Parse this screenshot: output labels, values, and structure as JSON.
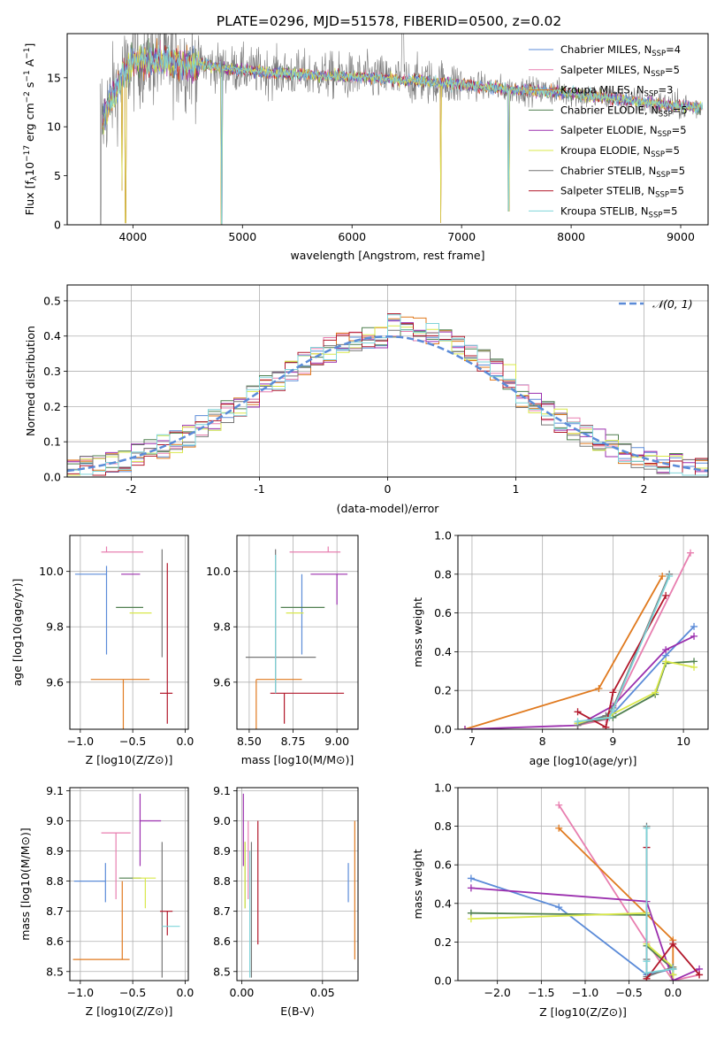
{
  "figure_title": "PLATE=0296, MJD=51578, FIBERID=0500, z=0.02",
  "colors": {
    "chabrier_miles": "#5b8bd8",
    "salpeter_miles": "#e87fb0",
    "kroupa_miles": "#e07a1f",
    "chabrier_elodie": "#4f7f4f",
    "salpeter_elodie": "#9b2fae",
    "kroupa_elodie": "#d9e84a",
    "chabrier_stelib": "#777777",
    "salpeter_stelib": "#b2182b",
    "kroupa_stelib": "#7fd4d9",
    "gaussian": "#5b8bd8"
  },
  "chart_data": [
    {
      "id": "spectrum",
      "type": "line",
      "title": "PLATE=0296, MJD=51578, FIBERID=0500, z=0.02",
      "xlabel": "wavelength [Angstrom, rest frame]",
      "ylabel": "Flux [f_λ 10^-17 erg cm^-2 s^-1 A^-1]",
      "xlim": [
        3400,
        9250
      ],
      "ylim": [
        0,
        19.5
      ],
      "xticks": [
        4000,
        5000,
        6000,
        7000,
        8000,
        9000
      ],
      "yticks": [
        0,
        5,
        10,
        15
      ],
      "grid": false,
      "legend_position": "top-right",
      "series": [
        {
          "name": "Chabrier MILES, N_SSP=4",
          "key": "chabrier_miles"
        },
        {
          "name": "Salpeter MILES, N_SSP=5",
          "key": "salpeter_miles"
        },
        {
          "name": "Kroupa MILES, N_SSP=3",
          "key": "kroupa_miles"
        },
        {
          "name": "Chabrier ELODIE, N_SSP=5",
          "key": "chabrier_elodie"
        },
        {
          "name": "Salpeter ELODIE, N_SSP=5",
          "key": "salpeter_elodie"
        },
        {
          "name": "Kroupa ELODIE, N_SSP=5",
          "key": "kroupa_elodie"
        },
        {
          "name": "Chabrier STELIB, N_SSP=5",
          "key": "chabrier_stelib"
        },
        {
          "name": "Salpeter STELIB, N_SSP=5",
          "key": "salpeter_stelib"
        },
        {
          "name": "Kroupa STELIB, N_SSP=5",
          "key": "kroupa_stelib"
        }
      ],
      "continuum": {
        "x": [
          3720,
          3800,
          3900,
          4000,
          4200,
          4400,
          4600,
          4800,
          5000,
          5200,
          5400,
          5600,
          5800,
          6000,
          6200,
          6400,
          6600,
          6800,
          7000,
          7200,
          7400,
          7600,
          7800,
          8000,
          8200,
          8400,
          8600,
          8800,
          9000,
          9200
        ],
        "y": [
          10.5,
          13.0,
          15.0,
          16.6,
          16.8,
          16.6,
          16.4,
          16.0,
          15.8,
          15.6,
          15.4,
          15.3,
          15.2,
          15.1,
          15.0,
          14.8,
          14.7,
          14.5,
          14.3,
          14.1,
          13.8,
          13.7,
          13.6,
          13.4,
          13.1,
          12.9,
          12.6,
          12.3,
          12.1,
          12.0
        ]
      },
      "model_dips": [
        {
          "x": 3900,
          "y": 3.5
        },
        {
          "x": 3935,
          "y": 0.2
        },
        {
          "x": 4810,
          "y": 0.1
        },
        {
          "x": 6810,
          "y": 0.2
        },
        {
          "x": 7430,
          "y": 1.4
        }
      ]
    },
    {
      "id": "residuals",
      "type": "bar",
      "xlabel": "(data-model)/error",
      "ylabel": "Normed distribution",
      "xlim": [
        -2.5,
        2.5
      ],
      "ylim": [
        0,
        0.545
      ],
      "xticks": [
        -2,
        -1,
        0,
        1,
        2
      ],
      "yticks": [
        0.0,
        0.1,
        0.2,
        0.3,
        0.4,
        0.5
      ],
      "grid": true,
      "legend_position": "top-right",
      "legend": [
        "𝒩(0, 1)"
      ],
      "bin_width": 0.1,
      "notes": "step histograms of (data-model)/error for each of the 9 fits, compared to a standard normal curve"
    },
    {
      "id": "age_vs_Z",
      "type": "scatter",
      "xlabel": "Z [log10(Z/Z⊙)]",
      "ylabel": "age [log10(age/yr)]",
      "xlim": [
        -1.1,
        0.03
      ],
      "ylim": [
        9.43,
        10.13
      ],
      "xticks": [
        -1.0,
        -0.5,
        0.0
      ],
      "xtick_labels": [
        "−1.0",
        "−0.5",
        "0.0"
      ],
      "yticks": [
        9.6,
        9.8,
        10.0
      ],
      "grid": true,
      "points": [
        {
          "key": "chabrier_miles",
          "x": -0.75,
          "xerr": [
            0.3,
            0.0
          ],
          "y": 9.99,
          "yerr": [
            0.29,
            0.03
          ]
        },
        {
          "key": "salpeter_miles",
          "x": -0.75,
          "xerr": [
            0.05,
            0.35
          ],
          "y": 10.07,
          "yerr": [
            0.0,
            0.02
          ]
        },
        {
          "key": "kroupa_miles",
          "x": -0.59,
          "xerr": [
            0.31,
            0.25
          ],
          "y": 9.61,
          "yerr": [
            0.36,
            0.0
          ]
        },
        {
          "key": "chabrier_elodie",
          "x": -0.4,
          "xerr": [
            0.26,
            0.0
          ],
          "y": 9.87,
          "yerr": [
            0.0,
            0.0
          ]
        },
        {
          "key": "salpeter_elodie",
          "x": -0.43,
          "xerr": [
            0.18,
            0.0
          ],
          "y": 9.99,
          "yerr": [
            0.0,
            0.0
          ]
        },
        {
          "key": "kroupa_elodie",
          "x": -0.38,
          "xerr": [
            0.15,
            0.06
          ],
          "y": 9.85,
          "yerr": [
            0.0,
            0.0
          ]
        },
        {
          "key": "chabrier_stelib",
          "x": -0.22,
          "xerr": [
            0.0,
            0.0
          ],
          "y": 9.69,
          "yerr": [
            0.0,
            0.39
          ]
        },
        {
          "key": "salpeter_stelib",
          "x": -0.17,
          "xerr": [
            0.07,
            0.05
          ],
          "y": 9.56,
          "yerr": [
            0.11,
            0.47
          ]
        },
        {
          "key": "kroupa_stelib",
          "x": -0.22,
          "xerr": [
            0.0,
            0.0
          ],
          "y": 9.69,
          "yerr": [
            0.0,
            0.0
          ]
        }
      ]
    },
    {
      "id": "age_vs_mass",
      "type": "scatter",
      "xlabel": "mass [log10(M/M⊙)]",
      "ylabel": "",
      "xlim": [
        8.43,
        9.12
      ],
      "ylim": [
        9.43,
        10.13
      ],
      "xticks": [
        8.5,
        8.75,
        9.0
      ],
      "xtick_labels": [
        "8.50",
        "8.75",
        "9.00"
      ],
      "yticks": [
        9.6,
        9.8,
        10.0
      ],
      "grid": true,
      "points": [
        {
          "key": "chabrier_miles",
          "x": 8.8,
          "xerr": [
            0.0,
            0.0
          ],
          "y": 9.99,
          "yerr": [
            0.29,
            0.0
          ]
        },
        {
          "key": "salpeter_miles",
          "x": 8.95,
          "xerr": [
            0.22,
            0.07
          ],
          "y": 10.07,
          "yerr": [
            0.0,
            0.02
          ]
        },
        {
          "key": "kroupa_miles",
          "x": 8.54,
          "xerr": [
            0.0,
            0.26
          ],
          "y": 9.61,
          "yerr": [
            0.36,
            0.0
          ]
        },
        {
          "key": "chabrier_elodie",
          "x": 8.81,
          "xerr": [
            0.13,
            0.12
          ],
          "y": 9.87,
          "yerr": [
            0.0,
            0.0
          ]
        },
        {
          "key": "salpeter_elodie",
          "x": 9.0,
          "xerr": [
            0.15,
            0.06
          ],
          "y": 9.99,
          "yerr": [
            0.11,
            0.0
          ]
        },
        {
          "key": "kroupa_elodie",
          "x": 8.81,
          "xerr": [
            0.1,
            0.0
          ],
          "y": 9.85,
          "yerr": [
            0.0,
            0.0
          ]
        },
        {
          "key": "chabrier_stelib",
          "x": 8.65,
          "xerr": [
            0.17,
            0.23
          ],
          "y": 9.69,
          "yerr": [
            0.13,
            0.39
          ]
        },
        {
          "key": "salpeter_stelib",
          "x": 8.7,
          "xerr": [
            0.08,
            0.34
          ],
          "y": 9.56,
          "yerr": [
            0.11,
            0.0
          ]
        },
        {
          "key": "kroupa_stelib",
          "x": 8.65,
          "xerr": [
            0.0,
            0.0
          ],
          "y": 9.69,
          "yerr": [
            0.13,
            0.37
          ]
        }
      ]
    },
    {
      "id": "mass_weight_vs_age",
      "type": "line",
      "xlabel": "age [log10(age/yr)]",
      "ylabel": "mass weight",
      "xlim": [
        6.8,
        10.35
      ],
      "ylim": [
        0.0,
        1.0
      ],
      "xticks": [
        7,
        8,
        9,
        10
      ],
      "yticks": [
        0.0,
        0.2,
        0.4,
        0.6,
        0.8,
        1.0
      ],
      "grid": true,
      "series": [
        {
          "key": "chabrier_miles",
          "x": [
            8.5,
            9.0,
            9.75,
            10.15
          ],
          "y": [
            0.03,
            0.08,
            0.38,
            0.53
          ]
        },
        {
          "key": "salpeter_miles",
          "x": [
            8.5,
            8.9,
            9.0,
            10.1
          ],
          "y": [
            0.02,
            0.05,
            0.1,
            0.91
          ]
        },
        {
          "key": "kroupa_miles",
          "x": [
            6.9,
            8.8,
            9.7
          ],
          "y": [
            0.0,
            0.21,
            0.79
          ]
        },
        {
          "key": "chabrier_elodie",
          "x": [
            8.5,
            9.0,
            9.6,
            9.75,
            10.15
          ],
          "y": [
            0.03,
            0.06,
            0.18,
            0.34,
            0.35
          ]
        },
        {
          "key": "salpeter_elodie",
          "x": [
            6.9,
            8.5,
            9.0,
            9.75,
            10.15
          ],
          "y": [
            0.0,
            0.02,
            0.12,
            0.41,
            0.48
          ]
        },
        {
          "key": "kroupa_elodie",
          "x": [
            8.5,
            8.95,
            9.6,
            9.75,
            10.15
          ],
          "y": [
            0.03,
            0.07,
            0.19,
            0.35,
            0.32
          ]
        },
        {
          "key": "chabrier_stelib",
          "x": [
            8.5,
            8.9,
            9.0,
            9.8
          ],
          "y": [
            0.02,
            0.07,
            0.11,
            0.8
          ]
        },
        {
          "key": "salpeter_stelib",
          "x": [
            8.5,
            8.9,
            9.0,
            9.75
          ],
          "y": [
            0.09,
            0.01,
            0.19,
            0.69
          ]
        },
        {
          "key": "kroupa_stelib",
          "x": [
            8.5,
            8.95,
            9.0,
            9.8
          ],
          "y": [
            0.04,
            0.06,
            0.1,
            0.79
          ]
        }
      ]
    },
    {
      "id": "mass_vs_Z",
      "type": "scatter",
      "xlabel": "Z [log10(Z/Z⊙)]",
      "ylabel": "mass [log10(M/M⊙)]",
      "xlim": [
        -1.1,
        0.03
      ],
      "ylim": [
        8.47,
        9.11
      ],
      "xticks": [
        -1.0,
        -0.5,
        0.0
      ],
      "xtick_labels": [
        "−1.0",
        "−0.5",
        "0.0"
      ],
      "yticks": [
        8.5,
        8.6,
        8.7,
        8.8,
        8.9,
        9.0,
        9.1
      ],
      "grid": true,
      "points": [
        {
          "key": "chabrier_miles",
          "x": -0.76,
          "xerr": [
            0.3,
            0.0
          ],
          "y": 8.8,
          "yerr": [
            0.07,
            0.06
          ]
        },
        {
          "key": "salpeter_miles",
          "x": -0.66,
          "xerr": [
            0.14,
            0.14
          ],
          "y": 8.96,
          "yerr": [
            0.22,
            0.0
          ]
        },
        {
          "key": "kroupa_miles",
          "x": -0.6,
          "xerr": [
            0.47,
            0.07
          ],
          "y": 8.54,
          "yerr": [
            0.0,
            0.26
          ]
        },
        {
          "key": "chabrier_elodie",
          "x": -0.42,
          "xerr": [
            0.21,
            0.0
          ],
          "y": 8.81,
          "yerr": [
            0.0,
            0.0
          ]
        },
        {
          "key": "salpeter_elodie",
          "x": -0.43,
          "xerr": [
            0.0,
            0.2
          ],
          "y": 9.0,
          "yerr": [
            0.15,
            0.09
          ]
        },
        {
          "key": "kroupa_elodie",
          "x": -0.38,
          "xerr": [
            0.12,
            0.1
          ],
          "y": 8.81,
          "yerr": [
            0.1,
            0.0
          ]
        },
        {
          "key": "chabrier_stelib",
          "x": -0.22,
          "xerr": [
            0.0,
            0.0
          ],
          "y": 8.65,
          "yerr": [
            0.17,
            0.28
          ]
        },
        {
          "key": "salpeter_stelib",
          "x": -0.17,
          "xerr": [
            0.07,
            0.05
          ],
          "y": 8.7,
          "yerr": [
            0.08,
            0.0
          ]
        },
        {
          "key": "kroupa_stelib",
          "x": -0.22,
          "xerr": [
            0.0,
            0.17
          ],
          "y": 8.65,
          "yerr": [
            0.0,
            0.0
          ]
        }
      ]
    },
    {
      "id": "mass_vs_ebv",
      "type": "scatter",
      "xlabel": "E(B-V)",
      "ylabel": "",
      "xlim": [
        -0.003,
        0.072
      ],
      "ylim": [
        8.47,
        9.11
      ],
      "xticks": [
        0.0,
        0.05
      ],
      "xtick_labels": [
        "0.00",
        "0.05"
      ],
      "yticks": [
        8.5,
        8.6,
        8.7,
        8.8,
        8.9,
        9.0,
        9.1
      ],
      "grid": true,
      "points": [
        {
          "key": "chabrier_miles",
          "x": 0.066,
          "y": 8.8,
          "yerr": [
            0.07,
            0.06
          ]
        },
        {
          "key": "salpeter_miles",
          "x": 0.004,
          "y": 8.96,
          "yerr": [
            0.22,
            0.04
          ]
        },
        {
          "key": "kroupa_miles",
          "x": 0.07,
          "y": 8.54,
          "yerr": [
            0.0,
            0.46
          ]
        },
        {
          "key": "chabrier_elodie",
          "x": 0.002,
          "y": 8.81,
          "yerr": [
            0.1,
            0.12
          ]
        },
        {
          "key": "salpeter_elodie",
          "x": 0.001,
          "y": 9.0,
          "yerr": [
            0.15,
            0.09
          ]
        },
        {
          "key": "kroupa_elodie",
          "x": 0.002,
          "y": 8.81,
          "yerr": [
            0.1,
            0.12
          ]
        },
        {
          "key": "chabrier_stelib",
          "x": 0.006,
          "y": 8.65,
          "yerr": [
            0.17,
            0.28
          ]
        },
        {
          "key": "salpeter_stelib",
          "x": 0.01,
          "y": 8.7,
          "yerr": [
            0.11,
            0.3
          ]
        },
        {
          "key": "kroupa_stelib",
          "x": 0.005,
          "y": 8.65,
          "yerr": [
            0.17,
            0.25
          ]
        }
      ]
    },
    {
      "id": "mass_weight_vs_Z",
      "type": "line",
      "xlabel": "Z [log10(Z/Z⊙)]",
      "ylabel": "mass weight",
      "xlim": [
        -2.45,
        0.4
      ],
      "ylim": [
        0.0,
        1.0
      ],
      "xticks": [
        -2.0,
        -1.5,
        -1.0,
        -0.5,
        0.0
      ],
      "xtick_labels": [
        "−2.0",
        "−1.5",
        "−1.0",
        "−0.5",
        "0.0"
      ],
      "yticks": [
        0.0,
        0.2,
        0.4,
        0.6,
        0.8,
        1.0
      ],
      "grid": true,
      "series": [
        {
          "key": "chabrier_miles",
          "x": [
            -2.3,
            -1.3,
            -0.3,
            0.0
          ],
          "y": [
            0.53,
            0.38,
            0.03,
            0.06
          ]
        },
        {
          "key": "salpeter_miles",
          "x": [
            -1.3,
            -0.3,
            0.0,
            0.3
          ],
          "y": [
            0.91,
            0.2,
            0.0,
            0.03
          ]
        },
        {
          "key": "kroupa_miles",
          "x": [
            -1.3,
            0.0,
            0.0
          ],
          "y": [
            0.79,
            0.21,
            0.0
          ]
        },
        {
          "key": "chabrier_elodie",
          "x": [
            -2.3,
            -0.3,
            -0.3,
            0.0,
            0.0
          ],
          "y": [
            0.35,
            0.34,
            0.18,
            0.06,
            0.03
          ]
        },
        {
          "key": "salpeter_elodie",
          "x": [
            -2.3,
            -0.3,
            0.0,
            0.3
          ],
          "y": [
            0.48,
            0.41,
            0.0,
            0.06
          ]
        },
        {
          "key": "kroupa_elodie",
          "x": [
            -2.3,
            -0.3,
            -0.3,
            0.0,
            0.0
          ],
          "y": [
            0.32,
            0.35,
            0.19,
            0.07,
            0.03
          ]
        },
        {
          "key": "chabrier_stelib",
          "x": [
            -0.3,
            -0.3,
            -0.3,
            0.0
          ],
          "y": [
            0.8,
            0.11,
            0.02,
            0.07
          ]
        },
        {
          "key": "salpeter_stelib",
          "x": [
            -0.3,
            -0.3,
            0.0,
            0.3
          ],
          "y": [
            0.69,
            0.01,
            0.19,
            0.03
          ]
        },
        {
          "key": "kroupa_stelib",
          "x": [
            -0.3,
            -0.3,
            -0.3,
            0.0
          ],
          "y": [
            0.79,
            0.1,
            0.04,
            0.06
          ]
        }
      ]
    }
  ]
}
